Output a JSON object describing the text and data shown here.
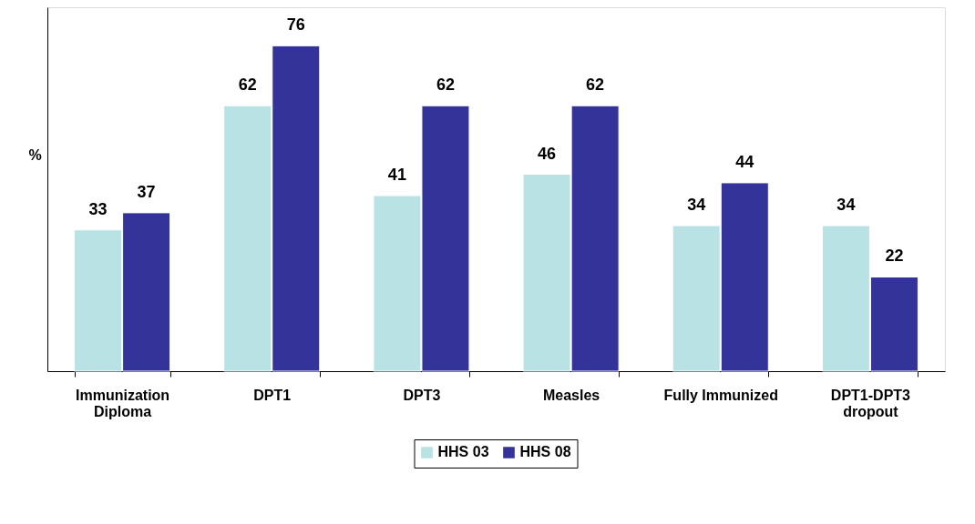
{
  "chart_data": {
    "type": "bar",
    "ylabel": "%",
    "categories": [
      "Immunization Diploma",
      "DPT1",
      "DPT3",
      "Measles",
      "Fully Immunized",
      "DPT1-DPT3 dropout"
    ],
    "series": [
      {
        "name": "HHS 03",
        "color": "#b9e2e4",
        "values": [
          33,
          62,
          41,
          46,
          34,
          34
        ]
      },
      {
        "name": "HHS 08",
        "color": "#333399",
        "values": [
          37,
          76,
          62,
          62,
          44,
          22
        ]
      }
    ],
    "ylim": [
      0,
      85
    ],
    "data_labels": true,
    "legend": "bottom"
  }
}
